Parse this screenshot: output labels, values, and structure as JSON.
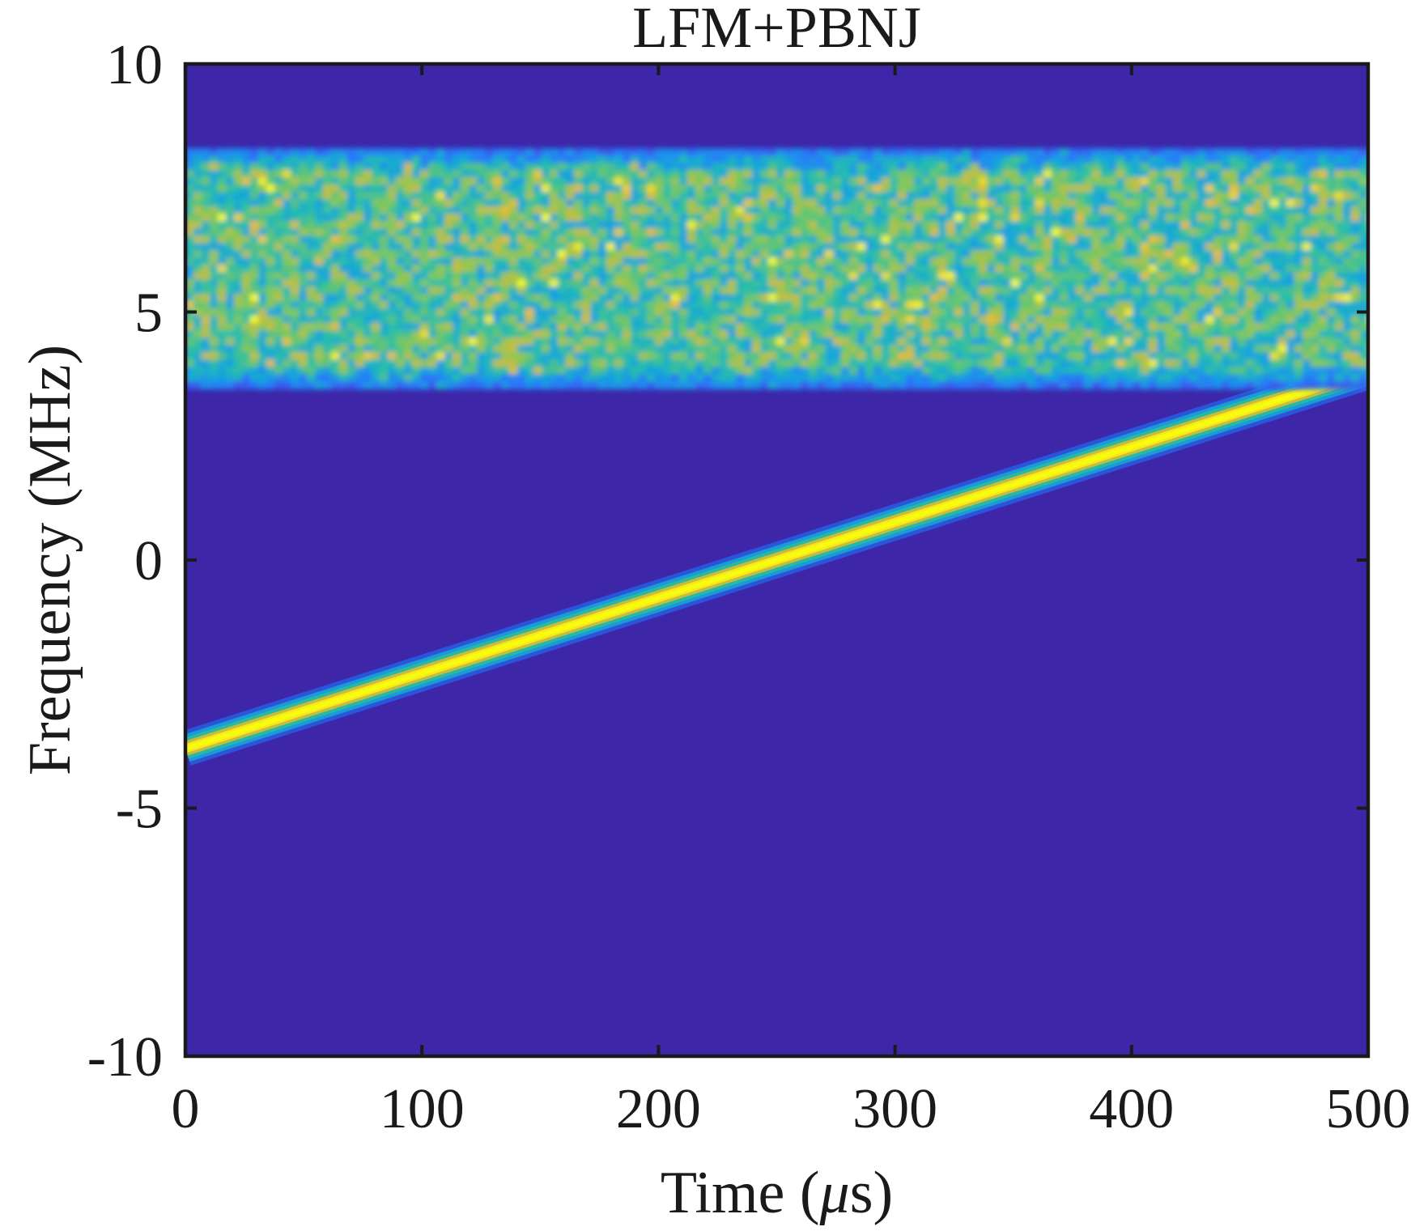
{
  "chart_data": {
    "type": "heatmap",
    "title": "LFM+PBNJ",
    "xlabel_prefix": "Time  (",
    "xlabel_unit_symbol": "μ",
    "xlabel_suffix": "s)",
    "ylabel": "Frequency (MHz)",
    "xlim": [
      0,
      500
    ],
    "ylim": [
      -10,
      10
    ],
    "xticks": [
      0,
      100,
      200,
      300,
      400,
      500
    ],
    "yticks": [
      -10,
      -5,
      0,
      5,
      10
    ],
    "xtick_labels": [
      "0",
      "100",
      "200",
      "300",
      "400",
      "500"
    ],
    "ytick_labels": [
      "-10",
      "-5",
      "0",
      "5",
      "10"
    ],
    "grid": false,
    "colormap": "parula",
    "background_color": "#3d26a8",
    "components": [
      {
        "kind": "lfm_chirp",
        "t_start": 0,
        "t_end": 500,
        "f_start": -3.8,
        "f_end": 3.8
      },
      {
        "kind": "partial_band_noise_jamming",
        "t_start": 0,
        "t_end": 500,
        "f_low": 3.6,
        "f_high": 8.3
      }
    ]
  }
}
